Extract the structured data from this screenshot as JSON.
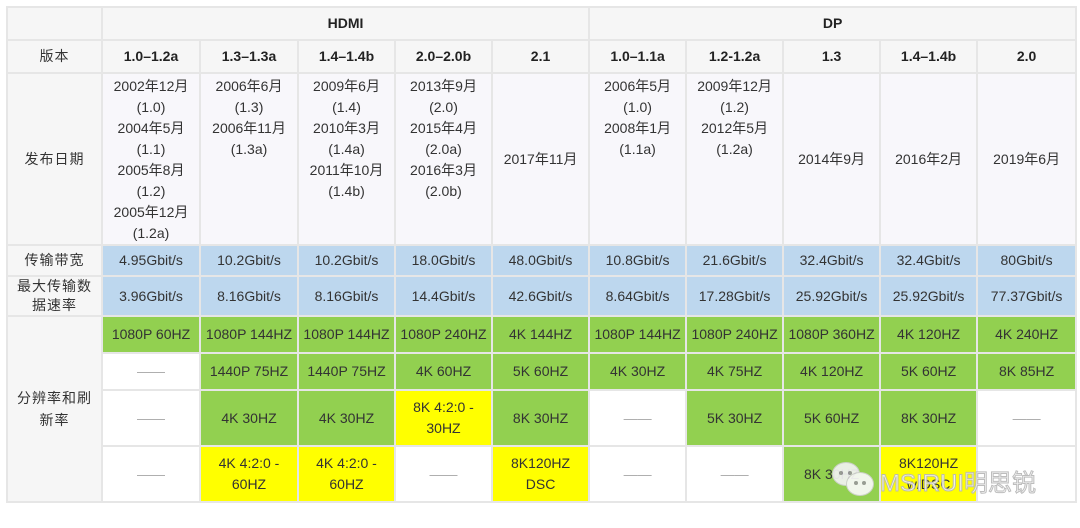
{
  "table": {
    "groups": [
      {
        "label": "HDMI",
        "span": 5
      },
      {
        "label": "DP",
        "span": 5
      }
    ],
    "row_labels": {
      "version": "版本",
      "release_date": "发布日期",
      "bandwidth": "传输带宽",
      "max_data_rate": "最大传输数据速率",
      "resolution": "分辨率和刷新率"
    },
    "versions": [
      "1.0–1.2a",
      "1.3–1.3a",
      "1.4–1.4b",
      "2.0–2.0b",
      "2.1",
      "1.0–1.1a",
      "1.2-1.2a",
      "1.3",
      "1.4–1.4b",
      "2.0"
    ],
    "release_dates": [
      [
        "2002年12月",
        "(1.0)",
        "2004年5月",
        "(1.1)",
        "2005年8月",
        "(1.2)",
        "2005年12月",
        "(1.2a)"
      ],
      [
        "2006年6月",
        "(1.3)",
        "2006年11月",
        "(1.3a)"
      ],
      [
        "2009年6月",
        "(1.4)",
        "2010年3月",
        "(1.4a)",
        "2011年10月",
        "(1.4b)"
      ],
      [
        "2013年9月",
        "(2.0)",
        "2015年4月",
        "(2.0a)",
        "2016年3月",
        "(2.0b)"
      ],
      [
        "2017年11月"
      ],
      [
        "2006年5月",
        "(1.0)",
        "2008年1月",
        "(1.1a)"
      ],
      [
        "2009年12月",
        "(1.2)",
        "2012年5月",
        "(1.2a)"
      ],
      [
        "2014年9月"
      ],
      [
        "2016年2月"
      ],
      [
        "2019年6月"
      ]
    ],
    "bandwidth": [
      "4.95Gbit/s",
      "10.2Gbit/s",
      "10.2Gbit/s",
      "18.0Gbit/s",
      "48.0Gbit/s",
      "10.8Gbit/s",
      "21.6Gbit/s",
      "32.4Gbit/s",
      "32.4Gbit/s",
      "80Gbit/s"
    ],
    "max_data_rate": [
      "3.96Gbit/s",
      "8.16Gbit/s",
      "8.16Gbit/s",
      "14.4Gbit/s",
      "42.6Gbit/s",
      "8.64Gbit/s",
      "17.28Gbit/s",
      "25.92Gbit/s",
      "25.92Gbit/s",
      "77.37Gbit/s"
    ],
    "resolution_rows": [
      [
        {
          "text": "1080P 60HZ",
          "color": "green"
        },
        {
          "text": "1080P 144HZ",
          "color": "green"
        },
        {
          "text": "1080P 144HZ",
          "color": "green"
        },
        {
          "text": "1080P 240HZ",
          "color": "green"
        },
        {
          "text": "4K 144HZ",
          "color": "green"
        },
        {
          "text": "1080P 144HZ",
          "color": "green"
        },
        {
          "text": "1080P 240HZ",
          "color": "green"
        },
        {
          "text": "1080P 360HZ",
          "color": "green"
        },
        {
          "text": "4K 120HZ",
          "color": "green"
        },
        {
          "text": "4K 240HZ",
          "color": "green"
        }
      ],
      [
        {
          "text": "——",
          "color": "empty"
        },
        {
          "text": "1440P 75HZ",
          "color": "green"
        },
        {
          "text": "1440P 75HZ",
          "color": "green"
        },
        {
          "text": "4K 60HZ",
          "color": "green"
        },
        {
          "text": "5K 60HZ",
          "color": "green"
        },
        {
          "text": "4K 30HZ",
          "color": "green"
        },
        {
          "text": "4K 75HZ",
          "color": "green"
        },
        {
          "text": "4K 120HZ",
          "color": "green"
        },
        {
          "text": "5K 60HZ",
          "color": "green"
        },
        {
          "text": "8K 85HZ",
          "color": "green"
        }
      ],
      [
        {
          "text": "——",
          "color": "empty"
        },
        {
          "text": "4K 30HZ",
          "color": "green"
        },
        {
          "text": "4K 30HZ",
          "color": "green"
        },
        {
          "text": "8K 4:2:0 - 30HZ",
          "color": "yellow"
        },
        {
          "text": "8K 30HZ",
          "color": "green"
        },
        {
          "text": "——",
          "color": "empty"
        },
        {
          "text": "5K 30HZ",
          "color": "green"
        },
        {
          "text": "5K 60HZ",
          "color": "green"
        },
        {
          "text": "8K 30HZ",
          "color": "green"
        },
        {
          "text": "——",
          "color": "empty"
        }
      ],
      [
        {
          "text": "——",
          "color": "empty"
        },
        {
          "text": "4K 4:2:0 - 60HZ",
          "color": "yellow"
        },
        {
          "text": "4K 4:2:0 - 60HZ",
          "color": "yellow"
        },
        {
          "text": "——",
          "color": "empty"
        },
        {
          "text": "8K120HZ DSC",
          "color": "yellow"
        },
        {
          "text": "——",
          "color": "empty"
        },
        {
          "text": "——",
          "color": "empty"
        },
        {
          "text": "8K 30HZ",
          "color": "green"
        },
        {
          "text": "8K120HZ w/DSC",
          "color": "yellow"
        },
        {
          "text": "",
          "color": "empty"
        }
      ]
    ],
    "colors": {
      "header_bg": "#f6f6f6",
      "date_bg": "#f8f7fb",
      "bandwidth_bg": "#bdd7ee",
      "green": "#92d050",
      "yellow": "#ffff00",
      "border": "#e6e6e6"
    }
  },
  "watermark": {
    "icon": "wechat-icon",
    "text": "MSIRUI明思锐"
  }
}
